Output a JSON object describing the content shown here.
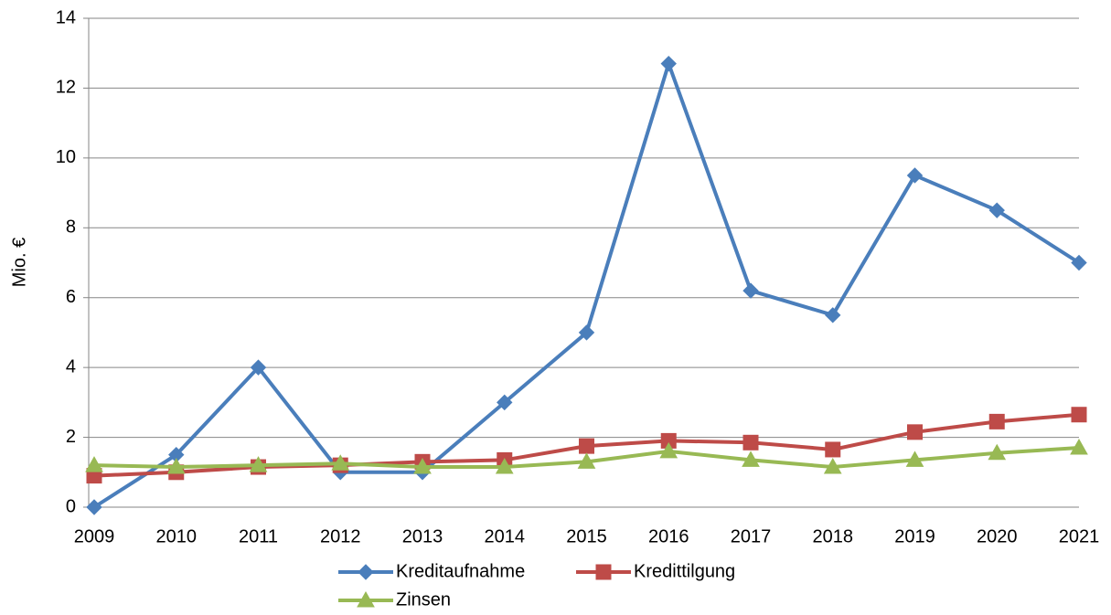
{
  "chart_data": {
    "type": "line",
    "y_label": "Mio. €",
    "categories": [
      "2009",
      "2010",
      "2011",
      "2012",
      "2013",
      "2014",
      "2015",
      "2016",
      "2017",
      "2018",
      "2019",
      "2020",
      "2021"
    ],
    "series": [
      {
        "name": "Kreditaufnahme",
        "color": "#4a7ebb",
        "marker": "diamond",
        "values": [
          0,
          1.5,
          4,
          1,
          1,
          3,
          5,
          12.7,
          6.2,
          5.5,
          9.5,
          8.5,
          7
        ]
      },
      {
        "name": "Kredittilgung",
        "color": "#be4b48",
        "marker": "square",
        "values": [
          0.9,
          1.0,
          1.15,
          1.2,
          1.3,
          1.35,
          1.75,
          1.9,
          1.85,
          1.65,
          2.15,
          2.45,
          2.65
        ]
      },
      {
        "name": "Zinsen",
        "color": "#98b954",
        "marker": "triangle",
        "values": [
          1.2,
          1.15,
          1.2,
          1.25,
          1.15,
          1.15,
          1.3,
          1.6,
          1.35,
          1.15,
          1.35,
          1.55,
          1.7
        ]
      }
    ],
    "ylim": [
      0,
      14
    ],
    "yticks": [
      0,
      2,
      4,
      6,
      8,
      10,
      12,
      14
    ],
    "grid": true,
    "legend": "bottom"
  }
}
